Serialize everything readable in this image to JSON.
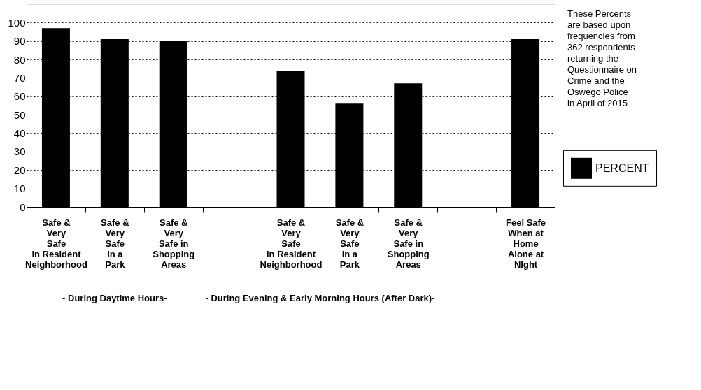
{
  "chart_data": {
    "type": "bar",
    "categories": [
      "Safe &\nVery\nSafe\nin Resident\nNeighborhood",
      "Safe &\nVery\nSafe\nin a\nPark",
      "Safe &\nVery\nSafe in\nShopping\nAreas",
      null,
      "Safe &\nVery\nSafe\nin Resident\nNeighborhood",
      "Safe &\nVery\nSafe\nin a\nPark",
      "Safe &\nVery\nSafe in\nShopping\nAreas",
      null,
      "Feel Safe\nWhen at\nHome\nAlone at\nNIght"
    ],
    "series": [
      {
        "name": "PERCENT",
        "color": "#000000",
        "values": [
          97,
          91,
          90,
          null,
          74,
          56,
          67,
          null,
          91
        ]
      }
    ],
    "ylim": [
      0,
      110
    ],
    "yticks": [
      0,
      10,
      20,
      30,
      40,
      50,
      60,
      70,
      80,
      90,
      100
    ],
    "grid": "y",
    "legend": "right",
    "annotations": [
      "These Percents\nare based upon\nfrequencies from\n362 respondents\nreturning the\nQuestionnaire on\nCrime and the\nOswego Police\nin April of 2015",
      "- During Daytime Hours-",
      "- During Evening & Early Morning Hours (After Dark)-"
    ]
  }
}
